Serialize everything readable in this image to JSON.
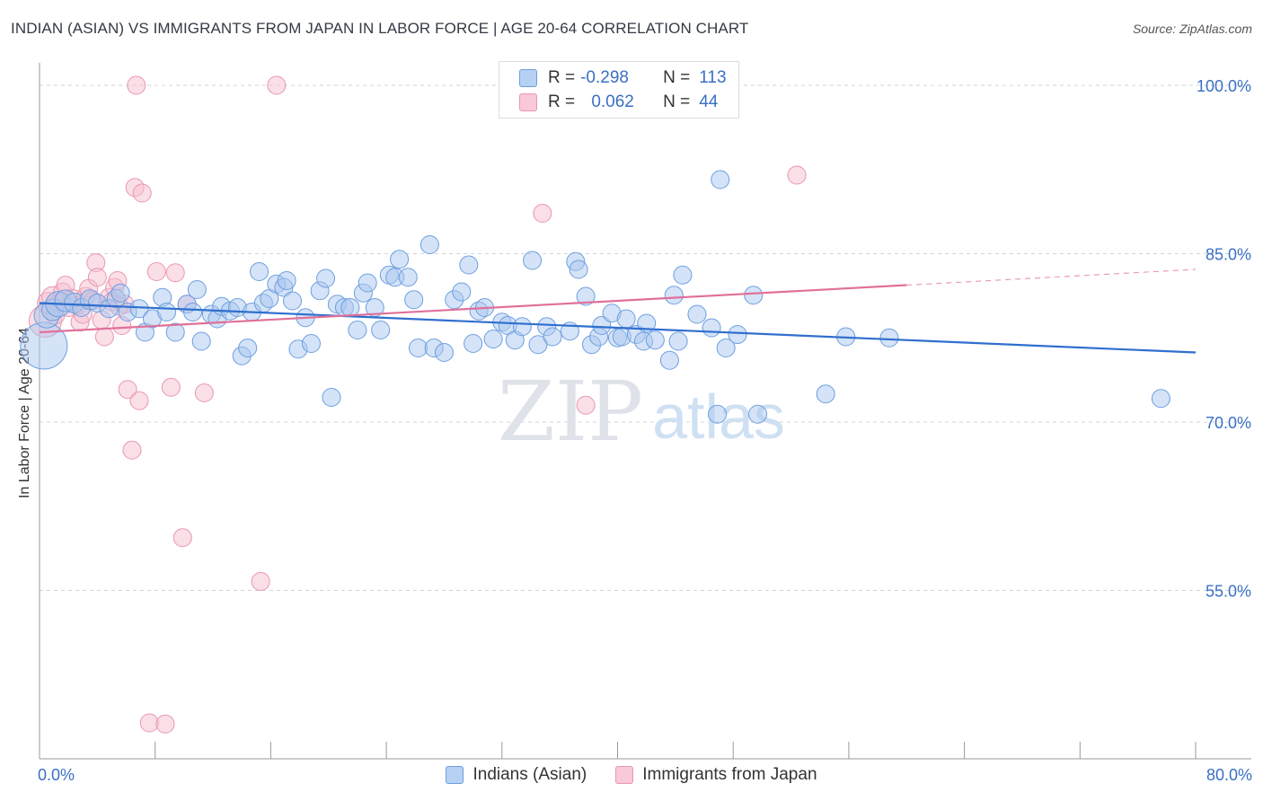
{
  "title": "INDIAN (ASIAN) VS IMMIGRANTS FROM JAPAN IN LABOR FORCE | AGE 20-64 CORRELATION CHART",
  "source": "Source: ZipAtlas.com",
  "watermark": {
    "zip": "ZIP",
    "atlas": "atlas"
  },
  "legend": {
    "r_label": "R =",
    "n_label": "N =",
    "rows": [
      {
        "r": "-0.298",
        "n": "113"
      },
      {
        "r": "0.062",
        "n": "44"
      }
    ]
  },
  "colors": {
    "blue_fill": "#a9c8f0",
    "blue_stroke": "#6c9ee0",
    "blue_line": "#2f6fce",
    "pink_fill": "#f6bfd0",
    "pink_stroke": "#e996b0",
    "pink_line": "#e0709a",
    "grid": "#d0d5dd",
    "tick_label": "#3a6fc4"
  },
  "chart_data": {
    "type": "scatter",
    "title": "INDIAN (ASIAN) VS IMMIGRANTS FROM JAPAN IN LABOR FORCE | AGE 20-64 CORRELATION CHART",
    "xlabel": "",
    "ylabel": "In Labor Force | Age 20-64",
    "xlim": [
      0,
      80
    ],
    "ylim": [
      40,
      102
    ],
    "x_tick_labels": [
      "0.0%",
      "80.0%"
    ],
    "y_ticks": [
      100,
      85,
      70,
      55
    ],
    "y_tick_labels": [
      "100.0%",
      "85.0%",
      "70.0%",
      "55.0%"
    ],
    "series": [
      {
        "name": "Indians (Asian)",
        "r": -0.298,
        "n": 113,
        "trend": {
          "x": [
            0,
            80
          ],
          "y": [
            80.6,
            76.2
          ]
        },
        "points": [
          [
            0.3,
            76.8,
            26
          ],
          [
            0.5,
            79.5,
            14
          ],
          [
            0.9,
            80.0,
            12
          ],
          [
            1.3,
            80.5,
            14
          ],
          [
            1.8,
            80.8,
            12
          ],
          [
            2.4,
            80.6,
            11
          ],
          [
            2.9,
            80.2,
            10
          ],
          [
            3.5,
            80.9,
            11
          ],
          [
            4.0,
            80.6,
            10
          ],
          [
            4.8,
            80.1,
            10
          ],
          [
            5.3,
            81.0,
            10
          ],
          [
            5.6,
            81.5,
            10
          ],
          [
            6.1,
            79.8,
            10
          ],
          [
            6.9,
            80.1,
            10
          ],
          [
            7.3,
            78.0,
            10
          ],
          [
            7.8,
            79.2,
            10
          ],
          [
            8.5,
            81.1,
            10
          ],
          [
            8.8,
            79.8,
            10
          ],
          [
            9.4,
            78.0,
            10
          ],
          [
            10.2,
            80.5,
            10
          ],
          [
            10.6,
            79.8,
            10
          ],
          [
            10.9,
            81.8,
            10
          ],
          [
            11.2,
            77.2,
            10
          ],
          [
            11.9,
            79.6,
            10
          ],
          [
            12.3,
            79.2,
            10
          ],
          [
            12.6,
            80.3,
            10
          ],
          [
            13.2,
            79.9,
            10
          ],
          [
            13.7,
            80.2,
            10
          ],
          [
            14.0,
            75.9,
            10
          ],
          [
            14.4,
            76.6,
            10
          ],
          [
            14.7,
            79.8,
            10
          ],
          [
            15.2,
            83.4,
            10
          ],
          [
            15.5,
            80.6,
            10
          ],
          [
            15.9,
            81.0,
            10
          ],
          [
            16.4,
            82.3,
            10
          ],
          [
            16.9,
            82.0,
            10
          ],
          [
            17.1,
            82.6,
            10
          ],
          [
            17.5,
            80.8,
            10
          ],
          [
            17.9,
            76.5,
            10
          ],
          [
            18.4,
            79.3,
            10
          ],
          [
            18.8,
            77.0,
            10
          ],
          [
            19.4,
            81.7,
            10
          ],
          [
            19.8,
            82.8,
            10
          ],
          [
            20.2,
            72.2,
            10
          ],
          [
            20.6,
            80.5,
            10
          ],
          [
            21.1,
            80.2,
            10
          ],
          [
            21.5,
            80.2,
            10
          ],
          [
            22.0,
            78.2,
            10
          ],
          [
            22.4,
            81.5,
            10
          ],
          [
            22.7,
            82.4,
            10
          ],
          [
            23.2,
            80.2,
            10
          ],
          [
            23.6,
            78.2,
            10
          ],
          [
            24.2,
            83.1,
            10
          ],
          [
            24.9,
            84.5,
            10
          ],
          [
            24.6,
            82.9,
            10
          ],
          [
            25.5,
            82.9,
            10
          ],
          [
            25.9,
            80.9,
            10
          ],
          [
            26.2,
            76.6,
            10
          ],
          [
            27.0,
            85.8,
            10
          ],
          [
            27.3,
            76.6,
            10
          ],
          [
            28.0,
            76.2,
            10
          ],
          [
            28.7,
            80.9,
            10
          ],
          [
            29.2,
            81.6,
            10
          ],
          [
            29.7,
            84.0,
            10
          ],
          [
            30.0,
            77.0,
            10
          ],
          [
            30.4,
            79.9,
            10
          ],
          [
            30.8,
            80.2,
            10
          ],
          [
            31.4,
            77.4,
            10
          ],
          [
            32.0,
            78.9,
            10
          ],
          [
            32.4,
            78.6,
            10
          ],
          [
            32.9,
            77.3,
            10
          ],
          [
            33.4,
            78.5,
            10
          ],
          [
            34.1,
            84.4,
            10
          ],
          [
            34.5,
            76.9,
            10
          ],
          [
            35.1,
            78.5,
            10
          ],
          [
            35.5,
            77.6,
            10
          ],
          [
            36.7,
            78.1,
            10
          ],
          [
            37.1,
            84.3,
            10
          ],
          [
            37.3,
            83.6,
            10
          ],
          [
            37.8,
            81.2,
            10
          ],
          [
            38.2,
            76.9,
            10
          ],
          [
            38.7,
            77.6,
            10
          ],
          [
            38.9,
            78.6,
            10
          ],
          [
            39.6,
            79.7,
            10
          ],
          [
            40.0,
            77.5,
            10
          ],
          [
            40.3,
            77.6,
            10
          ],
          [
            40.6,
            79.2,
            10
          ],
          [
            41.3,
            77.8,
            10
          ],
          [
            41.8,
            77.2,
            10
          ],
          [
            42.0,
            78.8,
            10
          ],
          [
            42.6,
            77.3,
            10
          ],
          [
            43.6,
            75.5,
            10
          ],
          [
            43.9,
            81.3,
            10
          ],
          [
            44.2,
            77.2,
            10
          ],
          [
            44.5,
            83.1,
            10
          ],
          [
            45.5,
            79.6,
            10
          ],
          [
            46.5,
            78.4,
            10
          ],
          [
            46.9,
            70.7,
            10
          ],
          [
            47.1,
            91.6,
            10
          ],
          [
            47.5,
            76.6,
            10
          ],
          [
            48.3,
            77.8,
            10
          ],
          [
            49.4,
            81.3,
            10
          ],
          [
            49.7,
            70.7,
            10
          ],
          [
            54.4,
            72.5,
            10
          ],
          [
            55.8,
            77.6,
            10
          ],
          [
            58.8,
            77.5,
            10
          ],
          [
            77.6,
            72.1,
            10
          ]
        ]
      },
      {
        "name": "Immigrants from Japan",
        "r": 0.062,
        "n": 44,
        "trend": {
          "x": [
            0,
            60
          ],
          "y": [
            78.0,
            82.2
          ]
        },
        "trend_dashed": {
          "x": [
            60,
            80
          ],
          "y": [
            82.2,
            83.6
          ]
        },
        "points": [
          [
            0.4,
            79.0,
            18
          ],
          [
            0.6,
            80.6,
            12
          ],
          [
            0.9,
            81.1,
            12
          ],
          [
            1.1,
            79.5,
            10
          ],
          [
            1.3,
            80.6,
            10
          ],
          [
            1.6,
            81.6,
            10
          ],
          [
            1.8,
            82.2,
            10
          ],
          [
            2.0,
            80.2,
            10
          ],
          [
            2.3,
            81.0,
            10
          ],
          [
            2.6,
            80.4,
            10
          ],
          [
            2.8,
            78.9,
            10
          ],
          [
            3.0,
            79.6,
            10
          ],
          [
            3.2,
            81.2,
            10
          ],
          [
            3.4,
            81.9,
            10
          ],
          [
            3.7,
            80.8,
            10
          ],
          [
            3.9,
            84.2,
            10
          ],
          [
            4.0,
            82.9,
            10
          ],
          [
            4.3,
            79.1,
            10
          ],
          [
            4.5,
            77.6,
            10
          ],
          [
            4.8,
            81.1,
            10
          ],
          [
            5.0,
            80.7,
            10
          ],
          [
            5.2,
            82.0,
            10
          ],
          [
            5.4,
            82.6,
            10
          ],
          [
            5.7,
            78.6,
            10
          ],
          [
            5.9,
            80.5,
            10
          ],
          [
            5.5,
            80.3,
            10
          ],
          [
            6.1,
            72.9,
            10
          ],
          [
            6.4,
            67.5,
            10
          ],
          [
            6.6,
            90.9,
            10
          ],
          [
            6.9,
            71.9,
            10
          ],
          [
            6.7,
            100.0,
            10
          ],
          [
            7.1,
            90.4,
            10
          ],
          [
            7.6,
            43.2,
            10
          ],
          [
            8.1,
            83.4,
            10
          ],
          [
            8.7,
            43.1,
            10
          ],
          [
            9.1,
            73.1,
            10
          ],
          [
            9.4,
            83.3,
            10
          ],
          [
            9.9,
            59.7,
            10
          ],
          [
            10.2,
            80.5,
            10
          ],
          [
            11.4,
            72.6,
            10
          ],
          [
            15.3,
            55.8,
            10
          ],
          [
            16.4,
            100.0,
            10
          ],
          [
            34.8,
            88.6,
            10
          ],
          [
            37.8,
            71.5,
            10
          ],
          [
            52.4,
            92.0,
            10
          ]
        ]
      }
    ]
  },
  "bottom_legend": [
    "Indians (Asian)",
    "Immigrants from Japan"
  ]
}
